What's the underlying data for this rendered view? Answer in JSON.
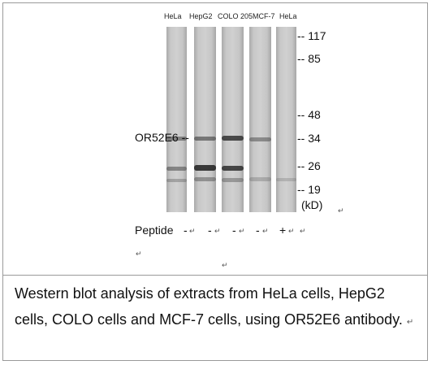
{
  "lanes": [
    {
      "label": "HeLa"
    },
    {
      "label": "HepG2"
    },
    {
      "label": "COLO 205"
    },
    {
      "label": "MCF-7"
    },
    {
      "label": "HeLa"
    }
  ],
  "markers": [
    "-- 117",
    "-- 85",
    "-- 48",
    "-- 34",
    "-- 26",
    "-- 19"
  ],
  "unit": "(kD)",
  "target": "OR52E6 --",
  "peptide": {
    "label": "Peptide",
    "values": [
      "-",
      "-",
      "-",
      "-",
      "+"
    ]
  },
  "return_mark": "↵",
  "caption": "Western blot analysis of extracts from HeLa cells, HepG2 cells, COLO cells and MCF-7 cells, using OR52E6 antibody."
}
